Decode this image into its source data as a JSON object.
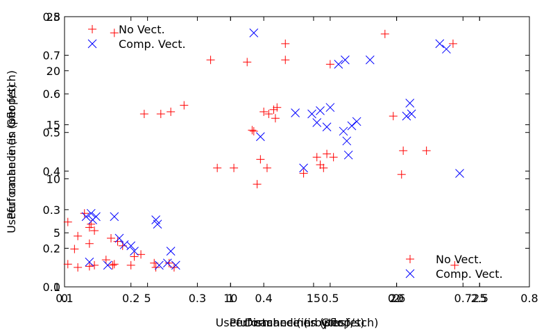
{
  "chart_data": [
    {
      "type": "scatter",
      "title": "",
      "xlabel": "Useful cache lines (per fetch)",
      "ylabel": "Performance (in Gflop/s)",
      "xlim": [
        0,
        28
      ],
      "ylim": [
        0,
        25
      ],
      "xticks": [
        "0",
        "5",
        "10",
        "15",
        "20",
        "25"
      ],
      "yticks": [
        "0",
        "5",
        "10",
        "15",
        "20",
        "25"
      ],
      "legend_position": "upper-left",
      "series": [
        {
          "name": "No Vect.",
          "color": "#ff0000",
          "marker": "plus",
          "points": [
            [
              0.2,
              6.0
            ],
            [
              0.2,
              2.1
            ],
            [
              0.6,
              3.5
            ],
            [
              0.8,
              1.8
            ],
            [
              0.8,
              4.7
            ],
            [
              1.2,
              6.8
            ],
            [
              1.5,
              5.5
            ],
            [
              1.5,
              4.0
            ],
            [
              1.5,
              1.9
            ],
            [
              1.6,
              5.8
            ],
            [
              1.8,
              5.2
            ],
            [
              1.8,
              2.0
            ],
            [
              2.5,
              2.5
            ],
            [
              2.8,
              4.5
            ],
            [
              2.9,
              2.0
            ],
            [
              3.0,
              2.1
            ],
            [
              3.0,
              23.5
            ],
            [
              3.2,
              4.2
            ],
            [
              3.5,
              3.8
            ],
            [
              4.0,
              2.0
            ],
            [
              4.2,
              2.8
            ],
            [
              4.6,
              3.0
            ],
            [
              4.8,
              16.0
            ],
            [
              5.4,
              2.2
            ],
            [
              5.5,
              1.8
            ],
            [
              5.8,
              16.0
            ],
            [
              6.3,
              2.2
            ],
            [
              6.4,
              16.2
            ],
            [
              6.6,
              1.8
            ],
            [
              7.2,
              16.8
            ],
            [
              8.8,
              21.0
            ],
            [
              9.2,
              11.0
            ],
            [
              10.2,
              11.0
            ],
            [
              11.0,
              20.8
            ],
            [
              11.3,
              14.5
            ],
            [
              11.4,
              14.4
            ],
            [
              11.6,
              9.5
            ],
            [
              11.8,
              11.8
            ],
            [
              12.0,
              16.2
            ],
            [
              12.2,
              11.0
            ],
            [
              12.3,
              16.0
            ],
            [
              12.6,
              16.4
            ],
            [
              12.7,
              15.6
            ],
            [
              12.8,
              16.6
            ],
            [
              13.3,
              21.0
            ],
            [
              13.3,
              22.5
            ],
            [
              14.4,
              10.5
            ],
            [
              15.2,
              12.0
            ],
            [
              15.4,
              11.3
            ],
            [
              15.6,
              11.0
            ],
            [
              15.8,
              12.3
            ],
            [
              16.0,
              20.6
            ],
            [
              16.2,
              12.0
            ],
            [
              19.3,
              23.4
            ],
            [
              19.8,
              15.8
            ],
            [
              20.3,
              10.4
            ],
            [
              20.4,
              12.6
            ],
            [
              21.8,
              12.6
            ],
            [
              23.4,
              22.5
            ],
            [
              23.5,
              2.0
            ]
          ]
        },
        {
          "name": "Comp. Vect.",
          "color": "#0000ff",
          "marker": "x",
          "points": [
            [
              1.3,
              6.5
            ],
            [
              1.5,
              2.3
            ],
            [
              1.6,
              6.8
            ],
            [
              1.7,
              6.2
            ],
            [
              1.9,
              6.5
            ],
            [
              2.6,
              2.0
            ],
            [
              3.0,
              6.5
            ],
            [
              3.3,
              4.5
            ],
            [
              3.6,
              3.9
            ],
            [
              4.0,
              3.8
            ],
            [
              4.2,
              3.3
            ],
            [
              5.5,
              6.2
            ],
            [
              5.6,
              5.8
            ],
            [
              5.7,
              2.0
            ],
            [
              6.2,
              2.2
            ],
            [
              6.4,
              3.3
            ],
            [
              6.7,
              2.0
            ],
            [
              11.4,
              23.5
            ],
            [
              11.8,
              13.9
            ],
            [
              13.9,
              16.1
            ],
            [
              14.4,
              11.0
            ],
            [
              14.9,
              16.0
            ],
            [
              15.2,
              15.2
            ],
            [
              15.4,
              16.3
            ],
            [
              15.8,
              14.8
            ],
            [
              16.0,
              16.6
            ],
            [
              16.5,
              20.6
            ],
            [
              16.8,
              14.4
            ],
            [
              16.9,
              21.0
            ],
            [
              17.0,
              13.5
            ],
            [
              17.1,
              12.2
            ],
            [
              17.3,
              14.9
            ],
            [
              17.6,
              15.3
            ],
            [
              18.4,
              21.0
            ],
            [
              20.6,
              15.8
            ],
            [
              20.8,
              17.0
            ],
            [
              20.9,
              16.0
            ],
            [
              22.6,
              22.5
            ],
            [
              23.0,
              22.0
            ],
            [
              23.8,
              10.5
            ]
          ]
        }
      ]
    },
    {
      "type": "scatter",
      "title": "",
      "xlabel": "Performance (in Gflop/s)",
      "ylabel": "Useful cache lines (per fetch)",
      "xlim": [
        0.1,
        0.8
      ],
      "ylim": [
        0.1,
        0.8
      ],
      "xticks": [
        "0.1",
        "0.2",
        "0.3",
        "0.4",
        "0.5",
        "0.6",
        "0.7",
        "0.8"
      ],
      "yticks": [
        "0.1",
        "0.2",
        "0.3",
        "0.4",
        "0.5",
        "0.6",
        "0.7",
        "0.8"
      ],
      "legend_position": "lower-right",
      "series": [
        {
          "name": "No Vect.",
          "color": "#ff0000",
          "marker": "plus"
        },
        {
          "name": "Comp. Vect.",
          "color": "#0000ff",
          "marker": "x"
        }
      ]
    },
    {
      "type": "scatter",
      "title": "",
      "xlabel": "Distance (in bytes)",
      "ylabel": "",
      "xlim": [
        0,
        2.8
      ],
      "ylim": [
        0,
        2.5
      ],
      "xticks": [
        "1",
        "2",
        "2.5"
      ],
      "yticks": [],
      "legend_position": "",
      "series": []
    }
  ]
}
